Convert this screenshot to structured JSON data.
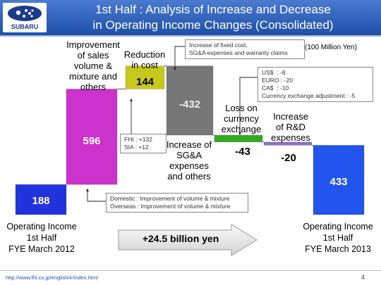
{
  "header": {
    "title_line1": "1st Half : Analysis of Increase and Decrease",
    "title_line2": "in Operating Income Changes (Consolidated)",
    "brand": "SUBARU"
  },
  "unit": "(100 Million Yen)",
  "chart_data": {
    "type": "bar",
    "subtype": "waterfall",
    "categories": [
      "Operating Income 1st Half FYE March 2012",
      "Improvement of sales volume & mixture and others",
      "Reduction in cost",
      "Increase of SG&A expenses and others",
      "Loss on currency exchange",
      "Increase of R&D expenses",
      "Operating Income 1st Half FYE March 2013"
    ],
    "values": [
      188,
      596,
      144,
      -432,
      -43,
      -20,
      433
    ],
    "value_labels": [
      "188",
      "596",
      "144",
      "-432",
      "-43",
      "-20",
      "433"
    ],
    "colors": [
      "#2233dd",
      "#cc33cc",
      "#c8c81a",
      "#777777",
      "#33aa22",
      "#8a6fc0",
      "#2255ee"
    ],
    "ylim": [
      0,
      950
    ]
  },
  "labels": {
    "start_line1": "Operating Income",
    "start_line2": "1st Half",
    "start_line3": "FYE March 2012",
    "end_line1": "Operating Income",
    "end_line2": "1st Half",
    "end_line3": "FYE March 2013",
    "improve_line1": "Improvement",
    "improve_line2": "of sales",
    "improve_line3": "volume &",
    "improve_line4": "mixture and",
    "improve_line5": "others",
    "reduction_line1": "Reduction",
    "reduction_line2": "in cost",
    "sga_line1": "Increase of",
    "sga_line2": "SG&A",
    "sga_line3": "expenses",
    "sga_line4": "and others",
    "loss_line1": "Loss on",
    "loss_line2": "currency",
    "loss_line3": "exchange",
    "rd_line1": "Increase",
    "rd_line2": "of R&D",
    "rd_line3": "expenses"
  },
  "notes": {
    "fixed_cost_line1": "Increase of fixed cost,",
    "fixed_cost_line2": "SG&A expenses and warranty claims",
    "currency_us": "US$  : -8",
    "currency_euro": "EURO : -20",
    "currency_ca": "CA$  : -10",
    "currency_adj": "Currency exchange adjustment : -5",
    "fhi": "FHI : +132",
    "sia": "SIA : +12",
    "domestic": "Domestic : Improvement of volume & mixture",
    "overseas": "Overseas : Improvement of volume & mixture"
  },
  "arrow_text": "+24.5 billion yen",
  "footer": {
    "url": "http://www.fhi.co.jp/english/ir/index.html",
    "page": "4"
  }
}
